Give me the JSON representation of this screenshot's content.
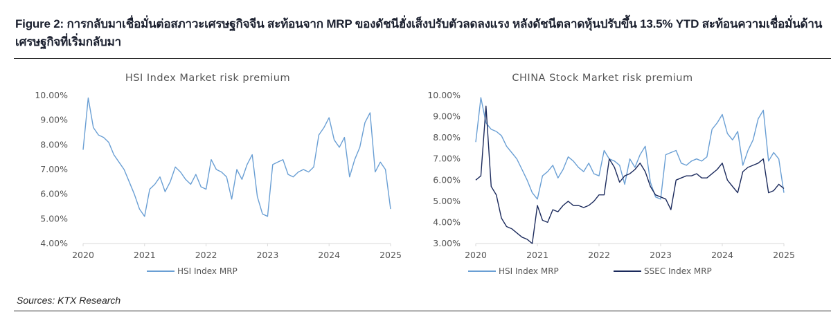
{
  "figure": {
    "title": "Figure 2: การกลับมาเชื่อมั่นต่อสภาวะเศรษฐกิจจีน สะท้อนจาก MRP ของดัชนีฮั่งเส็งปรับตัวลดลงแรง หลังดัชนีตลาดหุ้นปรับขึ้น 13.5% YTD สะท้อนความเชื่อมั่นด้านเศรษฐกิจที่เริ่มกลับมา",
    "source": "Sources: KTX Research"
  },
  "colors": {
    "hsi": "#6a9fd4",
    "ssec": "#1b2a5c",
    "axis": "#d9d9d9"
  },
  "chart_data": [
    {
      "type": "line",
      "title": "HSI Index Market risk premium",
      "ylim": [
        4,
        10
      ],
      "yticks": [
        "10.00%",
        "9.00%",
        "8.00%",
        "7.00%",
        "6.00%",
        "5.00%",
        "4.00%"
      ],
      "ytick_values": [
        10,
        9,
        8,
        7,
        6,
        5,
        4
      ],
      "xticks": [
        "2020",
        "2021",
        "2022",
        "2023",
        "2024",
        "2025"
      ],
      "xlim": [
        "2020-01",
        "2025-01"
      ],
      "legend": "bottom",
      "grid": false,
      "series": [
        {
          "name": "HSI Index MRP",
          "color": "#6a9fd4",
          "values": [
            7.8,
            9.9,
            8.7,
            8.4,
            8.3,
            8.1,
            7.6,
            7.3,
            7.0,
            6.5,
            6.0,
            5.4,
            5.1,
            6.2,
            6.4,
            6.7,
            6.1,
            6.5,
            7.1,
            6.9,
            6.6,
            6.4,
            6.8,
            6.3,
            6.2,
            7.4,
            7.0,
            6.9,
            6.7,
            5.8,
            7.0,
            6.6,
            7.2,
            7.6,
            5.9,
            5.2,
            5.1,
            7.2,
            7.3,
            7.4,
            6.8,
            6.7,
            6.9,
            7.0,
            6.9,
            7.1,
            8.4,
            8.7,
            9.1,
            8.2,
            7.9,
            8.3,
            6.7,
            7.4,
            7.9,
            8.9,
            9.3,
            6.9,
            7.3,
            7.0,
            5.4
          ]
        }
      ]
    },
    {
      "type": "line",
      "title": "CHINA Stock Market risk premium",
      "ylim": [
        3,
        10
      ],
      "yticks": [
        "10.00%",
        "9.00%",
        "8.00%",
        "7.00%",
        "6.00%",
        "5.00%",
        "4.00%",
        "3.00%"
      ],
      "ytick_values": [
        10,
        9,
        8,
        7,
        6,
        5,
        4,
        3
      ],
      "xticks": [
        "2020",
        "2021",
        "2022",
        "2023",
        "2024",
        "2025"
      ],
      "xlim": [
        "2020-01",
        "2025-01"
      ],
      "legend": "bottom",
      "grid": false,
      "series": [
        {
          "name": "HSI Index MRP",
          "color": "#6a9fd4",
          "values": [
            7.8,
            9.9,
            8.7,
            8.4,
            8.3,
            8.1,
            7.6,
            7.3,
            7.0,
            6.5,
            6.0,
            5.4,
            5.1,
            6.2,
            6.4,
            6.7,
            6.1,
            6.5,
            7.1,
            6.9,
            6.6,
            6.4,
            6.8,
            6.3,
            6.2,
            7.4,
            7.0,
            6.9,
            6.7,
            5.8,
            7.0,
            6.6,
            7.2,
            7.6,
            5.9,
            5.2,
            5.1,
            7.2,
            7.3,
            7.4,
            6.8,
            6.7,
            6.9,
            7.0,
            6.9,
            7.1,
            8.4,
            8.7,
            9.1,
            8.2,
            7.9,
            8.3,
            6.7,
            7.4,
            7.9,
            8.9,
            9.3,
            6.9,
            7.3,
            7.0,
            5.4
          ]
        },
        {
          "name": "SSEC Index MRP",
          "color": "#1b2a5c",
          "values": [
            6.0,
            6.2,
            9.5,
            5.7,
            5.3,
            4.2,
            3.8,
            3.7,
            3.5,
            3.3,
            3.2,
            3.0,
            4.8,
            4.1,
            4.0,
            4.6,
            4.5,
            4.8,
            5.0,
            4.8,
            4.8,
            4.7,
            4.8,
            5.0,
            5.3,
            5.3,
            7.0,
            6.6,
            5.9,
            6.2,
            6.3,
            6.5,
            6.8,
            6.4,
            5.7,
            5.3,
            5.2,
            5.1,
            4.6,
            6.0,
            6.1,
            6.2,
            6.2,
            6.3,
            6.1,
            6.1,
            6.3,
            6.5,
            6.8,
            6.0,
            5.7,
            5.4,
            6.4,
            6.6,
            6.7,
            6.8,
            7.0,
            5.4,
            5.5,
            5.8,
            5.6
          ]
        }
      ]
    }
  ]
}
